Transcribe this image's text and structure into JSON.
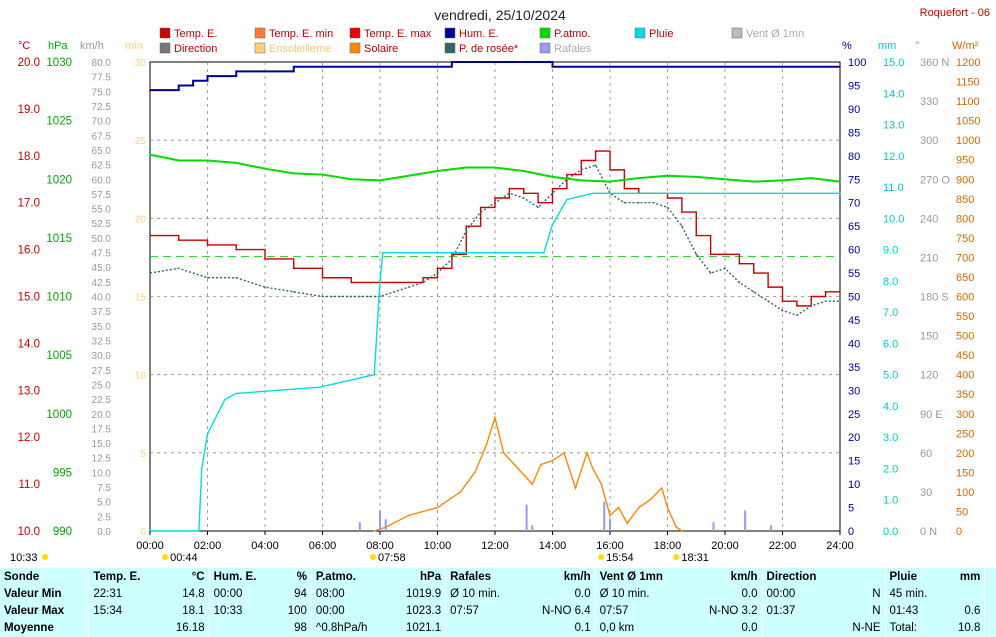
{
  "title": "vendredi, 25/10/2024",
  "station": "Roquefort - 06",
  "legend": [
    {
      "label": "Temp. E.",
      "color": "#cc0000"
    },
    {
      "label": "Temp. E. min",
      "color": "#ff7a3a"
    },
    {
      "label": "Temp. E. max",
      "color": "#ee0000"
    },
    {
      "label": "Hum. E.",
      "color": "#000099"
    },
    {
      "label": "P.atmo.",
      "color": "#00dd00"
    },
    {
      "label": "Pluie",
      "color": "#00dddd"
    },
    {
      "label": "Vent Ø 1mn",
      "color": "#bbbbbb"
    },
    {
      "label": "Direction",
      "color": "#777777"
    },
    {
      "label": "Ensoleilleme",
      "color": "#ffd07a"
    },
    {
      "label": "Solaire",
      "color": "#ff8800"
    },
    {
      "label": "P. de rosée*",
      "color": "#336666"
    },
    {
      "label": "Rafales",
      "color": "#9999ee"
    }
  ],
  "axes": {
    "temp": {
      "unit": "°C",
      "color": "#cc0000",
      "ticks": [
        "20.0",
        "19.0",
        "18.0",
        "17.0",
        "16.0",
        "15.0",
        "14.0",
        "13.0",
        "12.0",
        "11.0",
        "10.0"
      ]
    },
    "press": {
      "unit": "hPa",
      "color": "#00aa00",
      "ticks": [
        "1030",
        "1025",
        "1020",
        "1015",
        "1010",
        "1005",
        "1000",
        "995",
        "990"
      ]
    },
    "wind": {
      "unit": "km/h",
      "color": "#999999",
      "ticks": [
        "80.0",
        "77.5",
        "75.0",
        "72.5",
        "70.0",
        "67.5",
        "65.0",
        "62.5",
        "60.0",
        "57.5",
        "55.0",
        "52.5",
        "50.0",
        "47.5",
        "45.0",
        "42.5",
        "40.0",
        "37.5",
        "35.0",
        "32.5",
        "30.0",
        "27.5",
        "25.0",
        "22.5",
        "20.0",
        "17.5",
        "15.0",
        "12.5",
        "10.0",
        "7.5",
        "5.0",
        "2.5",
        "0.0"
      ]
    },
    "sun": {
      "unit": "min",
      "color": "#ffd07a",
      "ticks": [
        "30",
        "25",
        "20",
        "15",
        "10",
        "5",
        "0"
      ]
    },
    "hum": {
      "unit": "%",
      "color": "#000099",
      "ticks": [
        "100",
        "95",
        "90",
        "85",
        "80",
        "75",
        "70",
        "65",
        "60",
        "55",
        "50",
        "45",
        "40",
        "35",
        "30",
        "25",
        "20",
        "15",
        "10",
        "5",
        "0"
      ]
    },
    "rain": {
      "unit": "mm",
      "color": "#00cccc",
      "ticks": [
        "15.0",
        "14.0",
        "13.0",
        "12.0",
        "11.0",
        "10.0",
        "9.0",
        "8.0",
        "7.0",
        "6.0",
        "5.0",
        "4.0",
        "3.0",
        "2.0",
        "1.0",
        "0.0"
      ]
    },
    "dir": {
      "unit": "°",
      "color": "#999999",
      "ticks": [
        "360 N",
        "330",
        "300",
        "270 O",
        "240",
        "210",
        "180 S",
        "150",
        "120",
        "90  E",
        "60",
        "30",
        "0   N"
      ]
    },
    "solar": {
      "unit": "W/m²",
      "color": "#dd6600",
      "ticks": [
        "1200",
        "1150",
        "1100",
        "1050",
        "1000",
        "950",
        "900",
        "850",
        "800",
        "750",
        "700",
        "650",
        "600",
        "550",
        "500",
        "450",
        "400",
        "350",
        "300",
        "250",
        "200",
        "150",
        "100",
        "50",
        "0"
      ]
    },
    "time": {
      "ticks": [
        "00:00",
        "02:00",
        "04:00",
        "06:00",
        "08:00",
        "10:00",
        "12:00",
        "14:00",
        "16:00",
        "18:00",
        "20:00",
        "22:00",
        "24:00"
      ]
    }
  },
  "sun_events": {
    "sunrise": "07:58",
    "sunset": "18:31",
    "moonset": "10:33",
    "moonrise": "15:54",
    "t_marker": "00:44"
  },
  "chart_data": {
    "type": "line",
    "x_unit": "hour of day",
    "xlim": [
      0,
      24
    ],
    "series": [
      {
        "name": "Temp. E.",
        "unit": "°C",
        "color": "#cc0000",
        "x": [
          0,
          1,
          2,
          3,
          4,
          5,
          6,
          7,
          8,
          8.5,
          9,
          9.5,
          10,
          10.5,
          11,
          11.5,
          12,
          12.5,
          13,
          13.5,
          14,
          14.5,
          15,
          15.5,
          16,
          16.5,
          17,
          17.5,
          18,
          18.5,
          19,
          19.5,
          20,
          20.5,
          21,
          21.5,
          22,
          22.5,
          23,
          23.5,
          24
        ],
        "values": [
          16.3,
          16.2,
          16.1,
          16.0,
          15.8,
          15.6,
          15.4,
          15.3,
          15.3,
          15.3,
          15.3,
          15.4,
          15.6,
          15.9,
          16.5,
          16.9,
          17.1,
          17.3,
          17.2,
          17.0,
          17.3,
          17.6,
          17.9,
          18.1,
          17.7,
          17.3,
          17.2,
          17.2,
          17.1,
          16.8,
          16.3,
          15.9,
          15.9,
          15.7,
          15.5,
          15.2,
          14.9,
          14.8,
          15.0,
          15.1,
          15.1
        ]
      },
      {
        "name": "P. de rosée*",
        "unit": "°C",
        "color": "#336666",
        "x": [
          0,
          1,
          2,
          3,
          4,
          5,
          6,
          7,
          8,
          8.5,
          9,
          9.5,
          10,
          10.5,
          11,
          11.5,
          12,
          12.5,
          13,
          13.5,
          14,
          14.5,
          15,
          15.5,
          16,
          16.5,
          17,
          17.5,
          18,
          18.5,
          19,
          19.5,
          20,
          20.5,
          21,
          21.5,
          22,
          22.5,
          23,
          23.5,
          24
        ],
        "values": [
          15.5,
          15.6,
          15.4,
          15.4,
          15.2,
          15.1,
          15.0,
          15.0,
          15.0,
          15.1,
          15.2,
          15.3,
          15.5,
          15.8,
          16.4,
          16.8,
          17.0,
          17.2,
          17.1,
          16.9,
          17.2,
          17.5,
          17.7,
          17.8,
          17.2,
          17.0,
          17.0,
          17.0,
          16.9,
          16.5,
          15.9,
          15.5,
          15.6,
          15.3,
          15.1,
          14.9,
          14.7,
          14.6,
          14.8,
          14.9,
          14.9
        ]
      },
      {
        "name": "Hum. E.",
        "unit": "%",
        "color": "#000099",
        "x": [
          0,
          1,
          1.5,
          2,
          3,
          4,
          5,
          6,
          7,
          8,
          9,
          10,
          10.5,
          12,
          14,
          16,
          18,
          20,
          22,
          24
        ],
        "values": [
          94,
          95,
          96,
          97,
          98,
          98,
          99,
          99,
          99,
          99,
          99,
          99,
          100,
          100,
          99,
          99,
          99,
          99,
          99,
          99
        ]
      },
      {
        "name": "P.atmo.",
        "unit": "hPa",
        "color": "#00dd00",
        "x": [
          0,
          1,
          2,
          3,
          4,
          5,
          6,
          7,
          8,
          9,
          10,
          11,
          12,
          13,
          14,
          15,
          16,
          17,
          18,
          19,
          20,
          21,
          22,
          23,
          24
        ],
        "values": [
          1022.1,
          1021.6,
          1021.6,
          1021.4,
          1020.9,
          1020.5,
          1020.4,
          1020.0,
          1019.9,
          1020.3,
          1020.7,
          1021.0,
          1021.0,
          1020.7,
          1020.2,
          1019.9,
          1019.8,
          1020.1,
          1020.3,
          1020.2,
          1020.0,
          1019.8,
          1019.9,
          1020.1,
          1019.8
        ]
      },
      {
        "name": "Pluie",
        "unit": "mm",
        "color": "#00dddd",
        "x": [
          0,
          1.7,
          1.8,
          2.0,
          2.6,
          3.0,
          5.9,
          7.8,
          8.0,
          8.1,
          9.0,
          13.7,
          14.0,
          14.5,
          15.4,
          16.0,
          24
        ],
        "values": [
          0,
          0,
          2.0,
          3.1,
          4.2,
          4.4,
          4.6,
          5.0,
          8.0,
          8.9,
          8.9,
          8.9,
          9.8,
          10.6,
          10.8,
          10.8,
          10.8
        ]
      },
      {
        "name": "Solaire",
        "unit": "W/m²",
        "color": "#ff8800",
        "x": [
          7.8,
          8.2,
          9,
          10,
          10.8,
          11.3,
          11.7,
          12,
          12.3,
          12.8,
          13.3,
          13.6,
          14,
          14.4,
          14.8,
          15.2,
          15.4,
          15.7,
          16,
          16.3,
          16.6,
          17,
          17.4,
          17.8,
          18,
          18.3,
          18.5
        ],
        "values": [
          0,
          10,
          40,
          60,
          100,
          150,
          220,
          290,
          200,
          160,
          120,
          170,
          180,
          200,
          110,
          200,
          160,
          120,
          40,
          60,
          20,
          60,
          80,
          110,
          60,
          10,
          0
        ]
      },
      {
        "name": "Rafales",
        "unit": "km/h",
        "color": "#9999ee",
        "x": [
          7.3,
          8.0,
          8.2,
          13.1,
          13.3,
          15.8,
          16.0,
          19.6,
          20.7,
          21.6
        ],
        "values": [
          1.5,
          3.5,
          2.0,
          4.5,
          1.0,
          5.0,
          2.0,
          1.5,
          3.5,
          1.0
        ]
      }
    ],
    "threshold": {
      "label": "",
      "unit": "°C",
      "value": 15.85
    }
  },
  "summary": {
    "headers": [
      {
        "label": "Sonde",
        "unit": ""
      },
      {
        "label": "Temp. E.",
        "unit": "°C"
      },
      {
        "label": "Hum. E.",
        "unit": "%"
      },
      {
        "label": "P.atmo.",
        "unit": "hPa"
      },
      {
        "label": "Rafales",
        "unit": "km/h"
      },
      {
        "label": "Vent Ø 1mn",
        "unit": "km/h"
      },
      {
        "label": "Direction",
        "unit": ""
      },
      {
        "label": "Pluie",
        "unit": "mm"
      }
    ],
    "rows": [
      {
        "label": "Valeur Min",
        "cells": [
          [
            "22:31",
            "14.8"
          ],
          [
            "00:00",
            "94"
          ],
          [
            "08:00",
            "1019.9"
          ],
          [
            "Ø 10 min.",
            "0.0"
          ],
          [
            "Ø 10 min.",
            "0.0"
          ],
          [
            "00:00",
            "N"
          ],
          [
            "45 min.",
            ""
          ]
        ]
      },
      {
        "label": "Valeur Max",
        "cells": [
          [
            "15:34",
            "18.1"
          ],
          [
            "10:33",
            "100"
          ],
          [
            "00:00",
            "1023.3"
          ],
          [
            "07:57",
            "N-NO 6.4"
          ],
          [
            "07:57",
            "N-NO 3.2"
          ],
          [
            "01:37",
            "N"
          ],
          [
            "01:43",
            "0.6"
          ]
        ]
      },
      {
        "label": "Moyenne",
        "cells": [
          [
            "",
            "16.18"
          ],
          [
            "",
            "98"
          ],
          [
            "^0.8hPa/h",
            "1021.1"
          ],
          [
            "",
            "0.1"
          ],
          [
            "0,0 km",
            "0.0"
          ],
          [
            "",
            "N-NE"
          ],
          [
            "Total:",
            "10.8"
          ]
        ]
      }
    ]
  }
}
